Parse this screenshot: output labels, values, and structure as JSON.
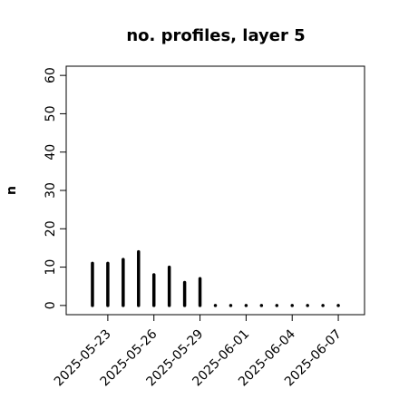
{
  "chart_data": {
    "type": "spike",
    "title": "no. profiles, layer 5",
    "y_label": "n",
    "x": [
      "2025-05-22",
      "2025-05-23",
      "2025-05-24",
      "2025-05-25",
      "2025-05-26",
      "2025-05-27",
      "2025-05-28",
      "2025-05-29",
      "2025-05-30",
      "2025-05-31",
      "2025-06-01",
      "2025-06-02",
      "2025-06-03",
      "2025-06-04",
      "2025-06-05",
      "2025-06-06",
      "2025-06-07"
    ],
    "values": [
      11,
      11,
      12,
      14,
      8,
      10,
      6,
      7,
      0,
      0,
      0,
      0,
      0,
      0,
      0,
      0,
      0
    ],
    "color": "#000000",
    "xlim": [
      "2025-05-20T07:00",
      "2025-06-08T17:00"
    ],
    "xticks": [
      "2025-05-23",
      "2025-05-26",
      "2025-05-29",
      "2025-06-01",
      "2025-06-04",
      "2025-06-07"
    ],
    "xtick_colors": [
      "#000000",
      "#000000",
      "#228b22",
      "#000000",
      "#000000",
      "#000000"
    ],
    "ylim": [
      -2.4,
      62.4
    ],
    "yticks": [
      0,
      10,
      20,
      30,
      40,
      50,
      60
    ]
  }
}
